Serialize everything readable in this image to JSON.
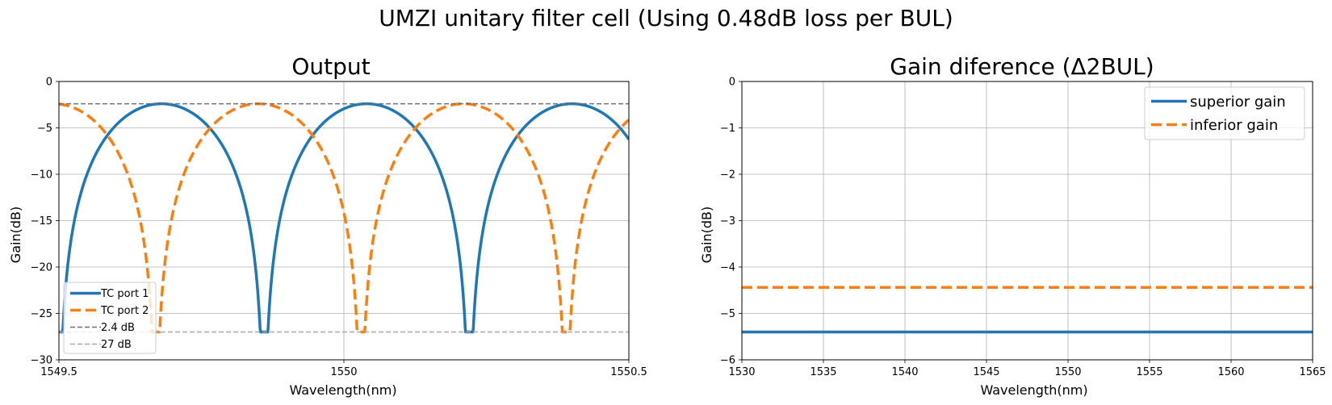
{
  "figure": {
    "suptitle": "UMZI unitary filter cell (Using 0.48dB loss per BUL)"
  },
  "chart_data": [
    {
      "type": "line",
      "title": "Output",
      "xlabel": "Wavelength(nm)",
      "ylabel": "Gain(dB)",
      "xlim": [
        1549.5,
        1550.5
      ],
      "ylim": [
        -30,
        0
      ],
      "xticks": [
        1549.5,
        1550,
        1550.5
      ],
      "xtick_labels": [
        "1549.5",
        "1550",
        "1550.5"
      ],
      "yticks": [
        -30,
        -25,
        -20,
        -15,
        -10,
        -5,
        0
      ],
      "ytick_labels": [
        "−30",
        "−25",
        "−20",
        "−15",
        "−10",
        "−5",
        "0"
      ],
      "grid": true,
      "legend": "lower-left",
      "series": [
        {
          "name": "TC port 1",
          "color": "#1f77b4",
          "style": "solid",
          "peak_db": -2.4,
          "null_db": -27,
          "null_wavelengths": [
            1549.5,
            1549.85,
            1550.2
          ],
          "period_nm": 0.36
        },
        {
          "name": "TC port 2",
          "color": "#ff7f0e",
          "style": "dashed",
          "peak_db": -2.4,
          "null_db": -27,
          "null_wavelengths": [
            1549.67,
            1550.02,
            1550.38
          ],
          "period_nm": 0.36
        },
        {
          "name": "2.4 dB",
          "color": "#707070",
          "style": "dashed",
          "y": -2.4
        },
        {
          "name": "27 dB",
          "color": "#a9a9a9",
          "style": "dashed",
          "y": -27
        }
      ]
    },
    {
      "type": "line",
      "title": "Gain diference (Δ2BUL)",
      "xlabel": "Wavelength(nm)",
      "ylabel": "Gain(dB)",
      "xlim": [
        1530,
        1565
      ],
      "ylim": [
        -6,
        0
      ],
      "xticks": [
        1530,
        1535,
        1540,
        1545,
        1550,
        1555,
        1560,
        1565
      ],
      "xtick_labels": [
        "1530",
        "1535",
        "1540",
        "1545",
        "1550",
        "1555",
        "1560",
        "1565"
      ],
      "yticks": [
        -6,
        -5,
        -4,
        -3,
        -2,
        -1,
        0
      ],
      "ytick_labels": [
        "−6",
        "−5",
        "−4",
        "−3",
        "−2",
        "−1",
        "0"
      ],
      "grid": true,
      "legend": "upper-right",
      "series": [
        {
          "name": "superior gain",
          "color": "#1f77b4",
          "style": "solid",
          "x": [
            1530,
            1565
          ],
          "y": [
            -5.4,
            -5.4
          ]
        },
        {
          "name": "inferior gain",
          "color": "#ff7f0e",
          "style": "dashed",
          "x": [
            1530,
            1565
          ],
          "y": [
            -4.44,
            -4.44
          ]
        }
      ]
    }
  ]
}
